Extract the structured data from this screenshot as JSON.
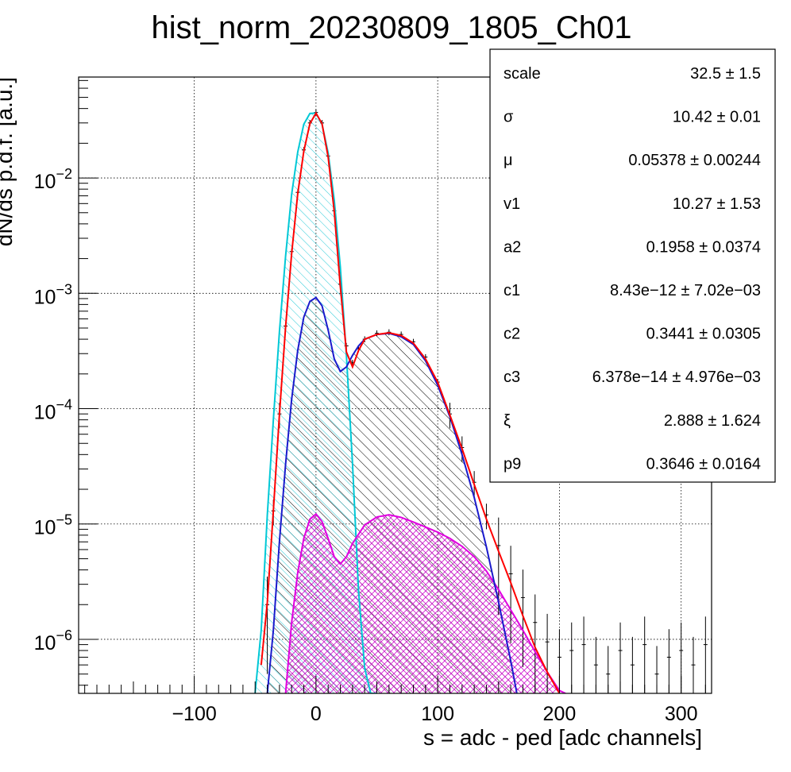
{
  "chart_data": {
    "type": "line",
    "title": "hist_norm_20230809_1805_Ch01",
    "xlabel": "s = adc - ped [adc channels]",
    "ylabel": "dN/ds p.d.f. [a.u.]",
    "xlim": [
      -195,
      325
    ],
    "ylim": [
      3.4e-07,
      0.075
    ],
    "yscale": "log",
    "grid": true,
    "xticks": [
      -100,
      0,
      100,
      200,
      300
    ],
    "xtick_labels": [
      "−100",
      "0",
      "100",
      "200",
      "300"
    ],
    "yticks": [
      {
        "value": 0.01,
        "base": "10",
        "exp": "−2"
      },
      {
        "value": 0.001,
        "base": "10",
        "exp": "−3"
      },
      {
        "value": 0.0001,
        "base": "10",
        "exp": "−4"
      },
      {
        "value": 1e-05,
        "base": "10",
        "exp": "−5"
      },
      {
        "value": 1e-06,
        "base": "10",
        "exp": "−6"
      }
    ],
    "series": [
      {
        "role": "data histogram",
        "color": "#000000",
        "x": [
          -40,
          -35,
          -30,
          -25,
          -20,
          -15,
          -10,
          -5,
          0,
          5,
          10,
          15,
          20,
          25,
          30,
          35,
          40,
          50,
          60,
          70,
          80,
          90,
          100,
          110,
          120,
          130,
          140,
          150,
          160,
          170,
          180,
          190,
          200,
          210,
          220,
          230,
          240,
          250,
          260,
          270,
          280,
          290,
          300,
          310,
          320
        ],
        "values": [
          2e-06,
          1.3e-05,
          9e-05,
          0.00052,
          0.0023,
          0.0075,
          0.0175,
          0.03,
          0.037,
          0.03,
          0.0155,
          0.0052,
          0.0012,
          0.00035,
          0.00025,
          0.00033,
          0.0004,
          0.00045,
          0.00046,
          0.00044,
          0.00038,
          0.00028,
          0.00017,
          9e-05,
          4.6e-05,
          2.3e-05,
          1.2e-05,
          6.5e-06,
          3.7e-06,
          2.3e-06,
          1.4e-06,
          9.5e-07,
          7e-07,
          8e-07,
          9e-07,
          6e-07,
          5e-07,
          8e-07,
          6e-07,
          9e-07,
          5e-07,
          7e-07,
          8e-07,
          6e-07,
          9e-07
        ]
      },
      {
        "role": "total fit",
        "color": "#ff0000",
        "x": [
          -45,
          -40,
          -35,
          -30,
          -25,
          -20,
          -15,
          -10,
          -5,
          0,
          5,
          10,
          15,
          20,
          25,
          30,
          35,
          40,
          50,
          60,
          70,
          80,
          90,
          100,
          110,
          120,
          130,
          140,
          150,
          160,
          170,
          180,
          190,
          200
        ],
        "values": [
          6e-07,
          2.1e-06,
          1.3e-05,
          9e-05,
          0.00051,
          0.0022,
          0.0073,
          0.017,
          0.0295,
          0.0365,
          0.0295,
          0.0152,
          0.0051,
          0.00115,
          0.00031,
          0.00023,
          0.00032,
          0.0004,
          0.00044,
          0.000455,
          0.00043,
          0.00037,
          0.00027,
          0.00017,
          8.8e-05,
          4.5e-05,
          2.2e-05,
          1.1e-05,
          5.8e-06,
          3.1e-06,
          1.6e-06,
          8.5e-07,
          5.2e-07,
          3.4e-07
        ]
      },
      {
        "role": "pedestal component",
        "color": "#00c8d6",
        "x": [
          -50,
          -45,
          -40,
          -35,
          -30,
          -25,
          -20,
          -15,
          -10,
          -5,
          0,
          5,
          10,
          15,
          20,
          25,
          30,
          35,
          40,
          45,
          50
        ],
        "values": [
          3.4e-07,
          1.2e-06,
          1.2e-05,
          8e-05,
          0.00047,
          0.0021,
          0.0072,
          0.0168,
          0.0292,
          0.0362,
          0.0365,
          0.0292,
          0.0165,
          0.0064,
          0.0017,
          0.00029,
          3.3e-05,
          2.6e-06,
          5.6e-07,
          3.4e-07,
          3.4e-07
        ]
      },
      {
        "role": "signal component",
        "color": "#1a1acc",
        "x": [
          -40,
          -35,
          -30,
          -25,
          -20,
          -15,
          -10,
          -5,
          0,
          5,
          10,
          15,
          20,
          25,
          30,
          35,
          40,
          50,
          60,
          70,
          80,
          90,
          100,
          110,
          120,
          130,
          140,
          150,
          160,
          165
        ],
        "values": [
          3.4e-07,
          1.2e-06,
          7.1e-06,
          3.3e-05,
          0.00012,
          0.00032,
          0.00062,
          0.00085,
          0.00092,
          0.00078,
          0.00048,
          0.00027,
          0.00021,
          0.00023,
          0.00029,
          0.00035,
          0.0004,
          0.00044,
          0.00045,
          0.00042,
          0.00036,
          0.00026,
          0.00016,
          8.5e-05,
          4e-05,
          1.7e-05,
          6.3e-06,
          2.1e-06,
          6.5e-07,
          3.4e-07
        ]
      },
      {
        "role": "secondary component",
        "color": "#e000e0",
        "x": [
          -25,
          -20,
          -15,
          -10,
          -5,
          0,
          5,
          10,
          15,
          20,
          25,
          30,
          40,
          50,
          60,
          70,
          80,
          90,
          100,
          110,
          120,
          130,
          140,
          150,
          160,
          170,
          180,
          190,
          200,
          205
        ],
        "values": [
          3.4e-07,
          1.4e-06,
          3.8e-06,
          7.5e-06,
          1.1e-05,
          1.22e-05,
          1.05e-05,
          7.5e-06,
          5.2e-06,
          4.5e-06,
          5.2e-06,
          6.8e-06,
          9.8e-06,
          1.15e-05,
          1.2e-05,
          1.14e-05,
          1.04e-05,
          9.4e-06,
          8.5e-06,
          7.5e-06,
          6.4e-06,
          5.2e-06,
          3.9e-06,
          2.7e-06,
          1.8e-06,
          1.2e-06,
          7.8e-07,
          5.2e-07,
          3.6e-07,
          3.4e-07
        ]
      }
    ]
  },
  "stats_box": {
    "rows": [
      {
        "label": "scale",
        "value": "32.5 ± 1.5"
      },
      {
        "label": "σ",
        "value": "10.42 ± 0.01"
      },
      {
        "label": "μ",
        "value": "0.05378 ± 0.00244"
      },
      {
        "label": "v1",
        "value": "10.27 ± 1.53"
      },
      {
        "label": "a2",
        "value": "0.1958 ± 0.0374"
      },
      {
        "label": "c1",
        "value": "8.43e−12 ± 7.02e−03"
      },
      {
        "label": "c2",
        "value": "0.3441 ± 0.0305"
      },
      {
        "label": "c3",
        "value": "6.378e−14 ± 4.976e−03"
      },
      {
        "label": "ξ",
        "value": "2.888 ± 1.624"
      },
      {
        "label": "p9",
        "value": "0.3646 ± 0.0164"
      }
    ]
  }
}
